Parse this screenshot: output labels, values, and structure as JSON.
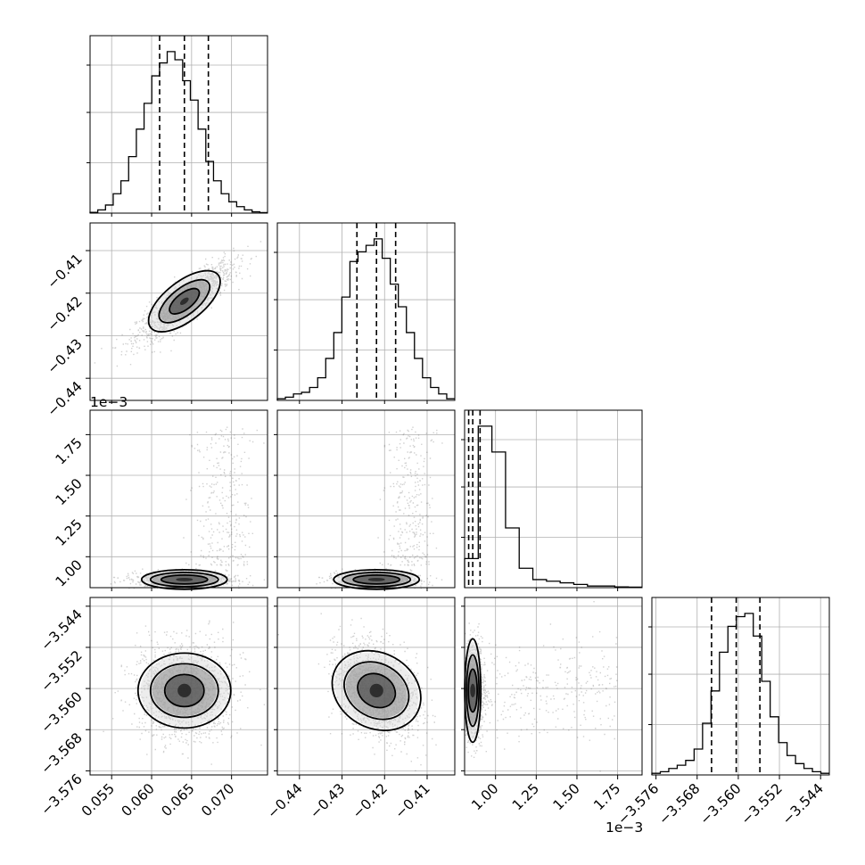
{
  "chart_data": {
    "type": "corner",
    "params": [
      {
        "ticks": [
          0.055,
          0.06,
          0.065,
          0.07
        ],
        "tick_labels": [
          "0.055",
          "0.060",
          "0.065",
          "0.070"
        ],
        "range": [
          0.0523,
          0.0745
        ],
        "median": 0.0641,
        "q16": 0.061,
        "q84": 0.0671
      },
      {
        "ticks": [
          -0.44,
          -0.43,
          -0.42,
          -0.41
        ],
        "tick_labels": [
          "−0.44",
          "−0.43",
          "−0.42",
          "−0.41"
        ],
        "range": [
          -0.4452,
          -0.4035
        ],
        "median": -0.4219,
        "q16": -0.4265,
        "q84": -0.4174
      },
      {
        "ticks": [
          1.0,
          1.25,
          1.5,
          1.75
        ],
        "tick_labels": [
          "1.00",
          "1.25",
          "1.50",
          "1.75"
        ],
        "range": [
          0.81,
          1.9
        ],
        "median": 0.86,
        "q16": 0.835,
        "q84": 0.905,
        "offset_label": "1e−3"
      },
      {
        "ticks": [
          -3.576,
          -3.568,
          -3.56,
          -3.552,
          -3.544
        ],
        "tick_labels": [
          "−3.576",
          "−3.568",
          "−3.560",
          "−3.552",
          "−3.544"
        ],
        "range": [
          -3.5768,
          -3.5423
        ],
        "median": -3.5604,
        "q16": -3.5652,
        "q84": -3.5558
      }
    ],
    "histograms": [
      [
        0.005,
        0.02,
        0.05,
        0.12,
        0.2,
        0.35,
        0.52,
        0.68,
        0.85,
        0.93,
        1.0,
        0.95,
        0.82,
        0.7,
        0.52,
        0.32,
        0.2,
        0.12,
        0.07,
        0.04,
        0.02,
        0.008,
        0.003
      ],
      [
        0.01,
        0.02,
        0.04,
        0.05,
        0.08,
        0.14,
        0.26,
        0.42,
        0.64,
        0.86,
        0.92,
        0.96,
        1.0,
        0.88,
        0.72,
        0.58,
        0.42,
        0.26,
        0.14,
        0.08,
        0.04,
        0.01
      ],
      [
        0.18,
        1.0,
        0.84,
        0.37,
        0.12,
        0.05,
        0.04,
        0.03,
        0.02,
        0.01,
        0.01,
        0.005,
        0.003
      ],
      [
        0.01,
        0.02,
        0.04,
        0.06,
        0.09,
        0.16,
        0.32,
        0.52,
        0.76,
        0.92,
        0.98,
        1.0,
        0.86,
        0.58,
        0.36,
        0.2,
        0.12,
        0.07,
        0.04,
        0.02,
        0.01
      ]
    ],
    "bottom_offset_label": "1e−3",
    "grid": true,
    "title": "",
    "legend": "none"
  }
}
